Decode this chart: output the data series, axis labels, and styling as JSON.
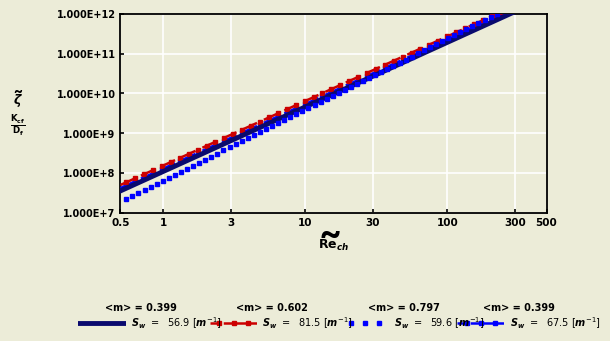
{
  "xmin": 0.5,
  "xmax": 500,
  "ymin": 10000000.0,
  "ymax": 1000000000000.0,
  "xticks": [
    0.5,
    1,
    3,
    10,
    30,
    100,
    300,
    500
  ],
  "yticks": [
    10000000.0,
    100000000.0,
    1000000000.0,
    10000000000.0,
    100000000000.0,
    1000000000000.0
  ],
  "ytick_labels": [
    "1.000E+7",
    "1.000E+8",
    "1.000E+9",
    "1.000E+10",
    "1.000E+11",
    "1.000E+12"
  ],
  "xtick_labels": [
    "0.5",
    "1",
    "3",
    "10",
    "30",
    "100",
    "300",
    "500"
  ],
  "series": [
    {
      "name": "navy_solid",
      "m": 1.62,
      "c": 110000000.0,
      "color": "#0a0a6e",
      "linewidth": 3.5
    },
    {
      "name": "red_dashdot",
      "m": 1.62,
      "c": 155000000.0,
      "color": "#cc0000",
      "linewidth": 1.8
    },
    {
      "name": "blue_dotted",
      "m": 1.78,
      "c": 65000000.0,
      "color": "#0000ff",
      "linewidth": 1.8
    },
    {
      "name": "blue_dashdot",
      "m": 1.62,
      "c": 130000000.0,
      "color": "#0000ff",
      "linewidth": 1.8
    }
  ],
  "bg_color": "#ececd8",
  "grid_color": "#ffffff",
  "fig_bg": "#ececd8",
  "legend": [
    {
      "m_label": "<m> = 0.399",
      "sw_label": "S_w =   56.9 [m^{-1}]"
    },
    {
      "m_label": "<m> = 0.602",
      "sw_label": "S_w =   81.5 [m^{-1}]"
    },
    {
      "m_label": "<m> = 0.797",
      "sw_label": "S_w =   59.6 [m^{-1}]"
    },
    {
      "m_label": "<m> = 0.399",
      "sw_label": "S_w =   67.5 [m^{-1}]"
    }
  ]
}
